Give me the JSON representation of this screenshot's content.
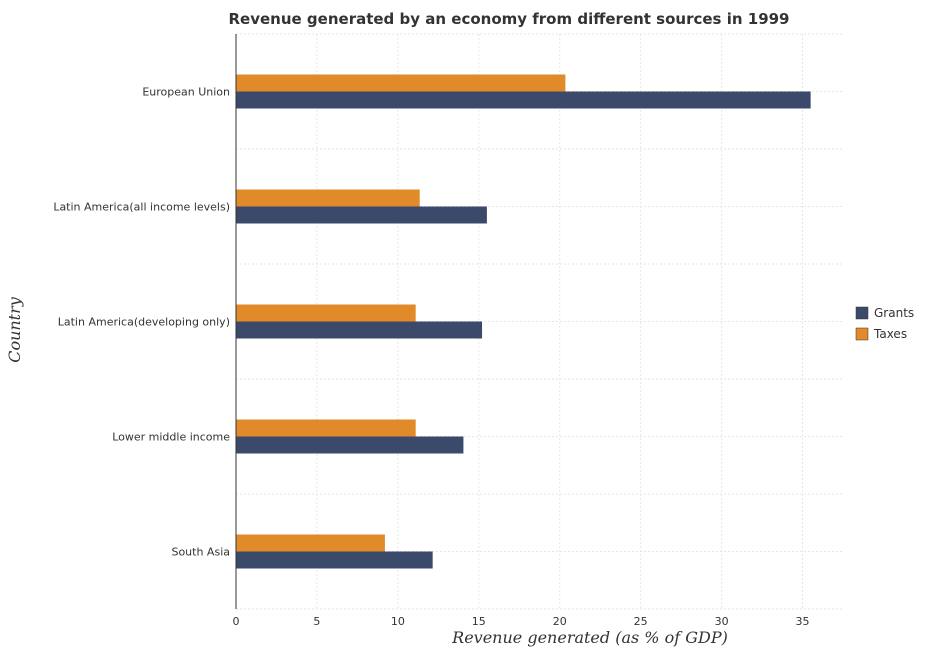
{
  "chart_data": {
    "type": "bar",
    "orientation": "horizontal",
    "title": "Revenue generated by an economy from different sources in 1999",
    "xlabel": "Revenue generated (as % of GDP)",
    "ylabel": "Country",
    "xlim": [
      0,
      37.5
    ],
    "xticks": [
      0,
      5,
      10,
      15,
      20,
      25,
      30,
      35
    ],
    "xtick_labels": [
      "0",
      "5",
      "10",
      "15",
      "20",
      "25",
      "30",
      "35"
    ],
    "categories": [
      "European Union",
      "Latin America(all income levels)",
      "Latin America(developing only)",
      "Lower middle income",
      "South Asia"
    ],
    "series": [
      {
        "name": "Grants",
        "color": "#3b4a6b",
        "values": [
          35.5,
          15.5,
          15.2,
          14.05,
          12.15
        ]
      },
      {
        "name": "Taxes",
        "color": "#e08a2a",
        "values": [
          20.35,
          11.35,
          11.1,
          11.1,
          9.2
        ]
      }
    ],
    "grid": true,
    "legend_position": "right"
  }
}
